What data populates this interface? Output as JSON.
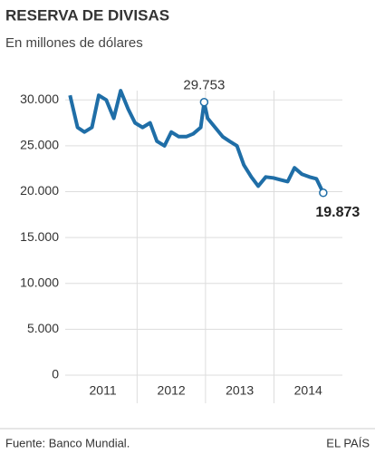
{
  "chart_data": {
    "type": "line",
    "title": "RESERVA DE DIVISAS",
    "subtitle": "En millones de dólares",
    "source": "Fuente: Banco Mundial.",
    "brand": "EL PAÍS",
    "series": [
      {
        "color": "#1f6ea7",
        "x": [
          2011.02,
          2011.13,
          2011.23,
          2011.34,
          2011.44,
          2011.55,
          2011.66,
          2011.76,
          2011.87,
          2011.97,
          2012.08,
          2012.19,
          2012.29,
          2012.4,
          2012.5,
          2012.61,
          2012.72,
          2012.82,
          2012.93,
          2012.98,
          2013.03,
          2013.14,
          2013.25,
          2013.35,
          2013.46,
          2013.56,
          2013.67,
          2013.77,
          2013.88,
          2013.99,
          2014.09,
          2014.2,
          2014.3,
          2014.41,
          2014.52,
          2014.62,
          2014.72
        ],
        "values": [
          30500,
          27000,
          26500,
          27000,
          30500,
          30000,
          28000,
          31000,
          29000,
          27500,
          27000,
          27500,
          25500,
          25000,
          26500,
          26000,
          26000,
          26300,
          27000,
          29753,
          28000,
          27000,
          26000,
          25500,
          25000,
          22900,
          21600,
          20600,
          21600,
          21500,
          21300,
          21100,
          22600,
          21900,
          21600,
          21400,
          19873
        ]
      }
    ],
    "annotations": [
      {
        "x": 2012.98,
        "value": 29753,
        "label": "29.753"
      },
      {
        "x": 2014.72,
        "value": 19873,
        "label": "19.873"
      }
    ],
    "xlim": [
      2010.95,
      2015.0
    ],
    "xticks": [
      {
        "value": 2011.5,
        "label": "2011"
      },
      {
        "value": 2012.5,
        "label": "2012"
      },
      {
        "value": 2013.5,
        "label": "2013"
      },
      {
        "value": 2014.5,
        "label": "2014"
      }
    ],
    "xgrid": [
      2012,
      2013,
      2014
    ],
    "ylim": [
      0,
      32000
    ],
    "yticks": [
      {
        "value": 0,
        "label": "0"
      },
      {
        "value": 5000,
        "label": "5.000"
      },
      {
        "value": 10000,
        "label": "10.000"
      },
      {
        "value": 15000,
        "label": "15.000"
      },
      {
        "value": 20000,
        "label": "20.000"
      },
      {
        "value": 25000,
        "label": "25.000"
      },
      {
        "value": 30000,
        "label": "30.000"
      }
    ],
    "grid": true
  }
}
